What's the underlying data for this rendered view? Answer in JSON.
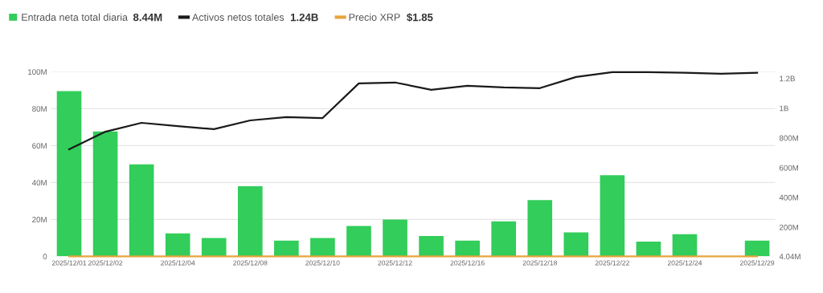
{
  "chart_data": {
    "type": "bar",
    "categories": [
      "2025/12/01",
      "2025/12/02",
      null,
      "2025/12/04",
      null,
      "2025/12/08",
      null,
      "2025/12/10",
      null,
      "2025/12/12",
      null,
      "2025/12/16",
      null,
      "2025/12/18",
      null,
      "2025/12/22",
      null,
      "2025/12/24",
      null,
      "2025/12/29"
    ],
    "series": [
      {
        "name": "Entrada neta total diaria",
        "color": "#32cd5a",
        "values": [
          89500000,
          67700000,
          49800000,
          12500000,
          10000000,
          38000000,
          8500000,
          10000000,
          16500000,
          20000000,
          11000000,
          8500000,
          19000000,
          30500000,
          13000000,
          44000000,
          8000000,
          12000000,
          null,
          8500000
        ]
      },
      {
        "name": "Activos netos totales",
        "type": "line",
        "axis": "y2",
        "color": "#1a1a1a",
        "values": [
          724000000,
          842000000,
          902000000,
          880000000,
          859000000,
          918000000,
          940000000,
          934000000,
          1167000000,
          1173000000,
          1124000000,
          1151000000,
          1140000000,
          1135000000,
          1210000000,
          1243000000,
          1243000000,
          1238000000,
          1232000000,
          1238000000
        ]
      },
      {
        "name": "Precio XRP",
        "type": "line",
        "axis": "y2",
        "color": "#e8a33c",
        "values": [
          4040000,
          4040000,
          4040000,
          4040000,
          4040000,
          4040000,
          4040000,
          4040000,
          4040000,
          4040000,
          4040000,
          4040000,
          4040000,
          4040000,
          4040000,
          4040000,
          4040000,
          4040000,
          4040000,
          4040000
        ]
      }
    ],
    "annotations": [
      "8.44M",
      "1.24B",
      "$1.85"
    ],
    "ylim": [
      0,
      100000000
    ],
    "yticks": [
      0,
      {
        "value": 20000000,
        "label": "20M"
      },
      {
        "value": 40000000,
        "label": "40M"
      },
      {
        "value": 60000000,
        "label": "60M"
      },
      {
        "value": 80000000,
        "label": "80M"
      },
      {
        "value": 100000000,
        "label": "100M"
      }
    ],
    "y2lim": [
      4040000,
      1245000000
    ],
    "y2ticks": [
      {
        "value": 4040000,
        "label": "4.04M"
      },
      {
        "value": 200000000,
        "label": "200M"
      },
      {
        "value": 400000000,
        "label": "400M"
      },
      {
        "value": 600000000,
        "label": "600M"
      },
      {
        "value": 800000000,
        "label": "800M"
      },
      {
        "value": 1000000000,
        "label": "1B"
      },
      {
        "value": 1200000000,
        "label": "1.2B"
      }
    ],
    "grid": "y",
    "legend": "top left",
    "marker": "none",
    "line_style": "solid"
  }
}
